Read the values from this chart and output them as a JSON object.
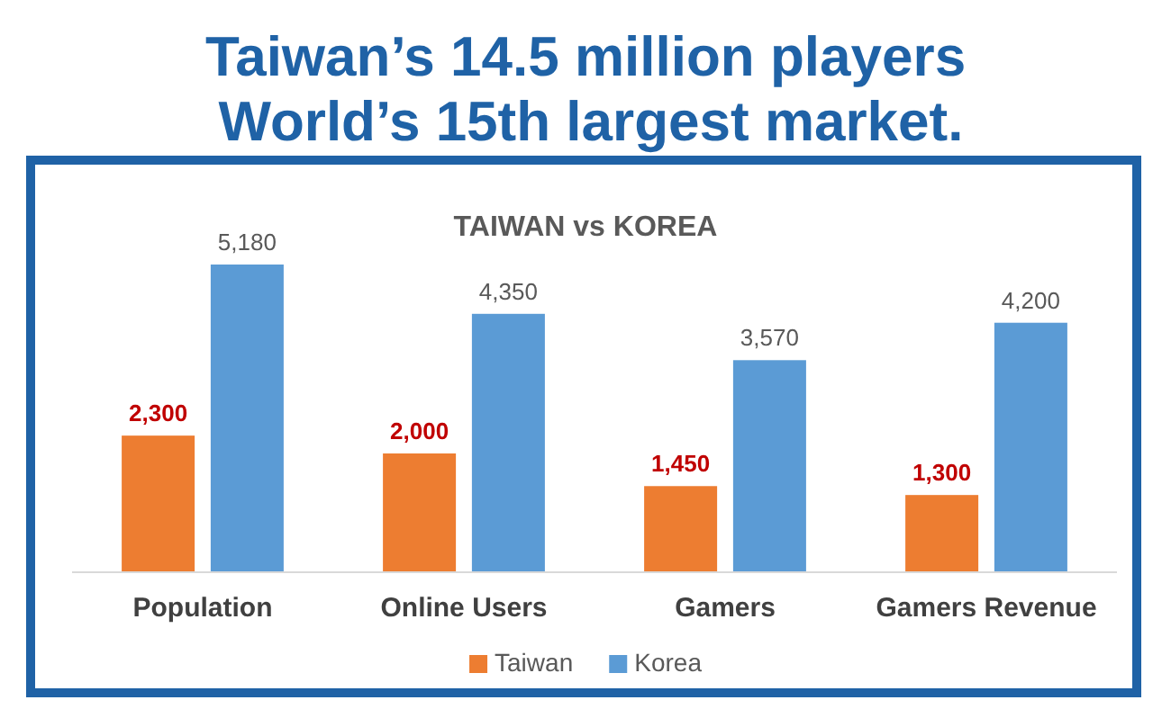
{
  "chart_data": {
    "type": "bar",
    "title": "Taiwan’s 14.5 million players\nWorld’s 15th largest market.",
    "subtitle": "TAIWAN vs KOREA",
    "categories": [
      "Population",
      "Online Users",
      "Gamers",
      "Gamers Revenue"
    ],
    "series": [
      {
        "name": "Taiwan",
        "color": "#ed7d31",
        "values": [
          2300,
          2000,
          1450,
          1300
        ],
        "value_labels": [
          "2,300",
          "2,000",
          "1,450",
          "1,300"
        ]
      },
      {
        "name": "Korea",
        "color": "#5b9bd5",
        "values": [
          5180,
          4350,
          3570,
          4200
        ],
        "value_labels": [
          "5,180",
          "4,350",
          "3,570",
          "4,200"
        ]
      }
    ],
    "grid": false,
    "legend": "bottom"
  }
}
